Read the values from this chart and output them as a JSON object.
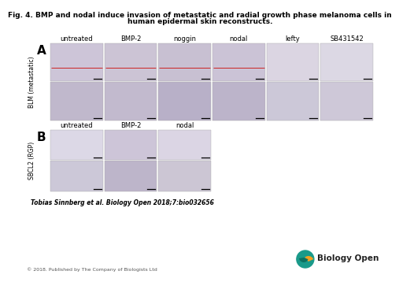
{
  "title_line1": "Fig. 4. BMP and nodal induce invasion of metastatic and radial growth phase melanoma cells in",
  "title_line2": "human epidermal skin reconstructs.",
  "panel_A_label": "A",
  "panel_B_label": "B",
  "panel_A_columns": [
    "untreated",
    "BMP-2",
    "noggin",
    "nodal",
    "lefty",
    "SB431542"
  ],
  "panel_B_columns": [
    "untreated",
    "BMP-2",
    "nodal"
  ],
  "row_label_A": "BLM (metastatic)",
  "row_label_B": "SBCL2 (RGP)",
  "citation": "Tobias Sinnberg et al. Biology Open 2018;7:bio032656",
  "copyright": "© 2018. Published by The Company of Biologists Ltd",
  "bg_color": "#ffffff",
  "red_line_color": "#cc2222",
  "title_fontsize": 6.5,
  "col_label_fontsize": 6.0,
  "row_label_fontsize": 5.5,
  "citation_fontsize": 5.5,
  "copyright_fontsize": 4.5,
  "panel_A_top_colors": [
    "#cdc5d8",
    "#ccc4d5",
    "#c8c0d2",
    "#cbc3d6",
    "#dbd5e2",
    "#dcd8e4"
  ],
  "panel_A_bot_colors": [
    "#c0b8cc",
    "#c2bace",
    "#b8b0c8",
    "#bcb4ca",
    "#ccc8d8",
    "#cec8d8"
  ],
  "panel_B_top_colors": [
    "#dcd8e6",
    "#cdc5d8",
    "#dbd5e4"
  ],
  "panel_B_bot_colors": [
    "#ccc8d8",
    "#bdb5ca",
    "#ccc6d4"
  ],
  "red_line_panels_A": [
    0,
    1,
    2,
    3
  ],
  "logo_teal": "#1a9a8a",
  "logo_orange": "#f5a020",
  "logo_dark": "#0d7060"
}
